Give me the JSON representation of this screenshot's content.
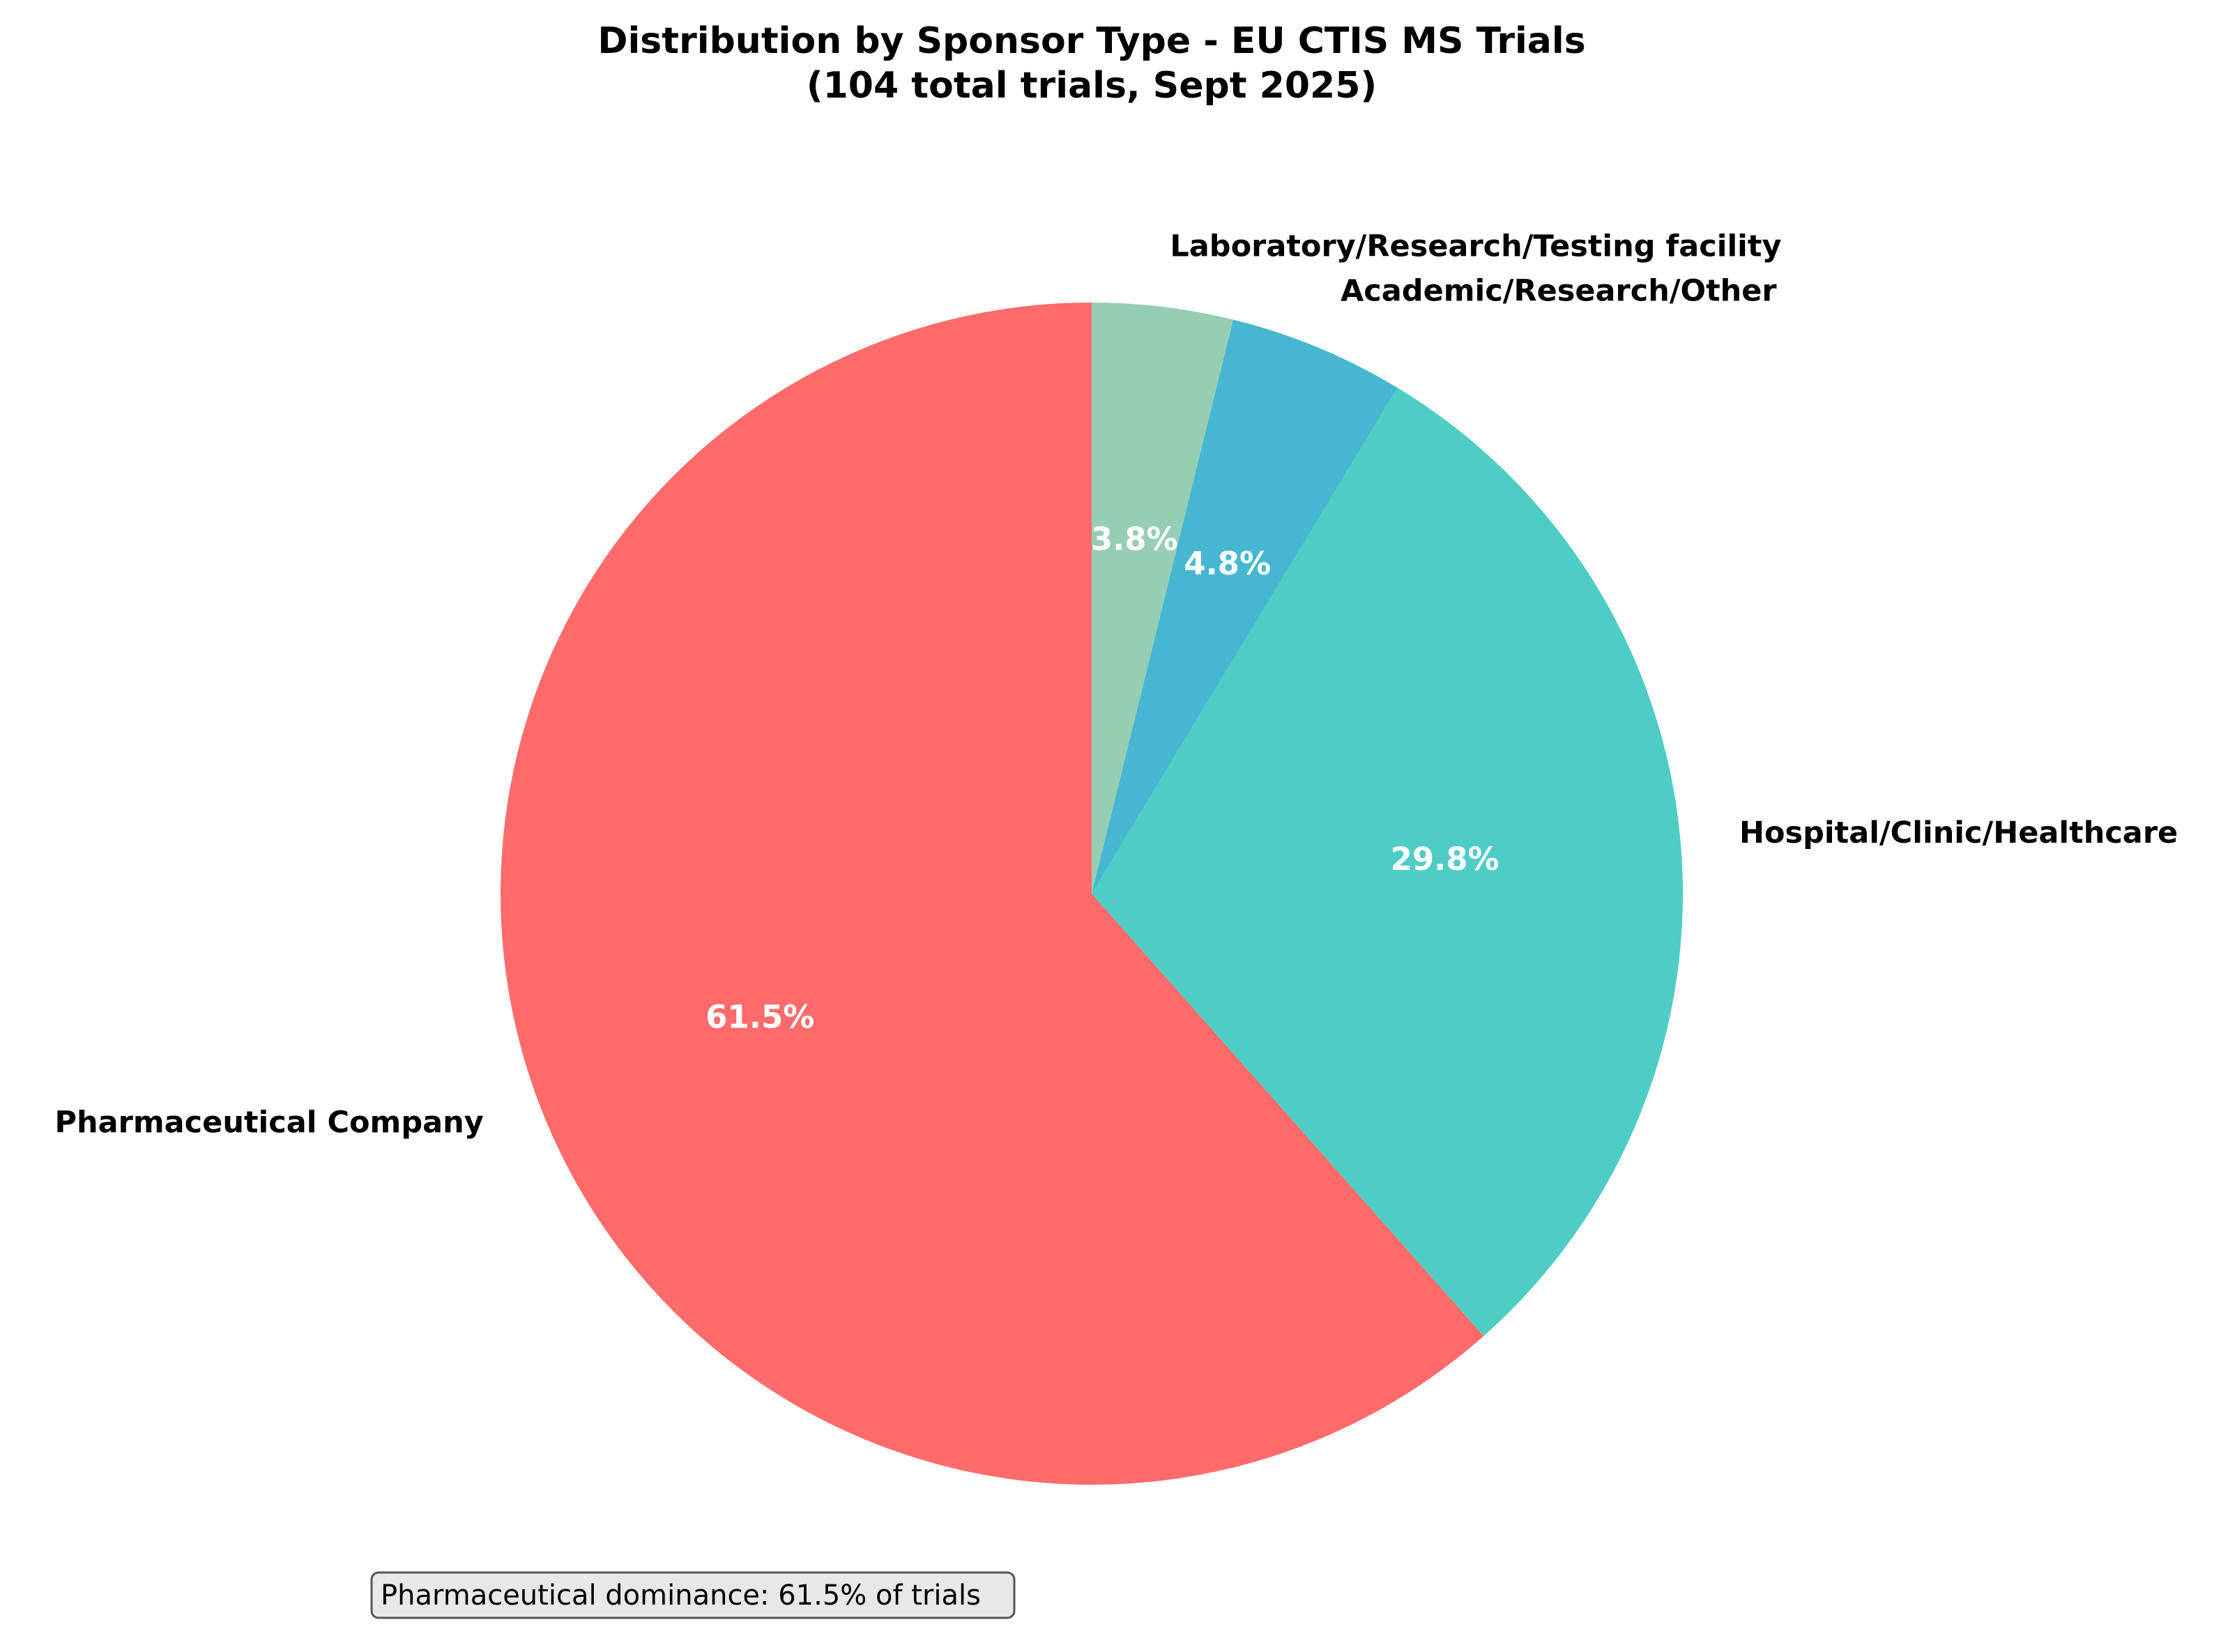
{
  "chart_data": {
    "type": "pie",
    "title_lines": [
      "Distribution by Sponsor Type - EU CTIS MS Trials",
      "(104 total trials, Sept 2025)"
    ],
    "categories": [
      "Pharmaceutical Company",
      "Hospital/Clinic/Healthcare",
      "Academic/Research/Other",
      "Laboratory/Research/Testing facility"
    ],
    "values": [
      64,
      31,
      5,
      4
    ],
    "percent_labels": [
      "61.5%",
      "29.8%",
      "4.8%",
      "3.8%"
    ],
    "colors": [
      "#ff6b6b",
      "#4ecdc4",
      "#45b7d1",
      "#96ceb4"
    ],
    "start_angle_deg": 90,
    "direction": "counterclockwise",
    "annotation": "Pharmaceutical dominance: 61.5% of trials"
  }
}
